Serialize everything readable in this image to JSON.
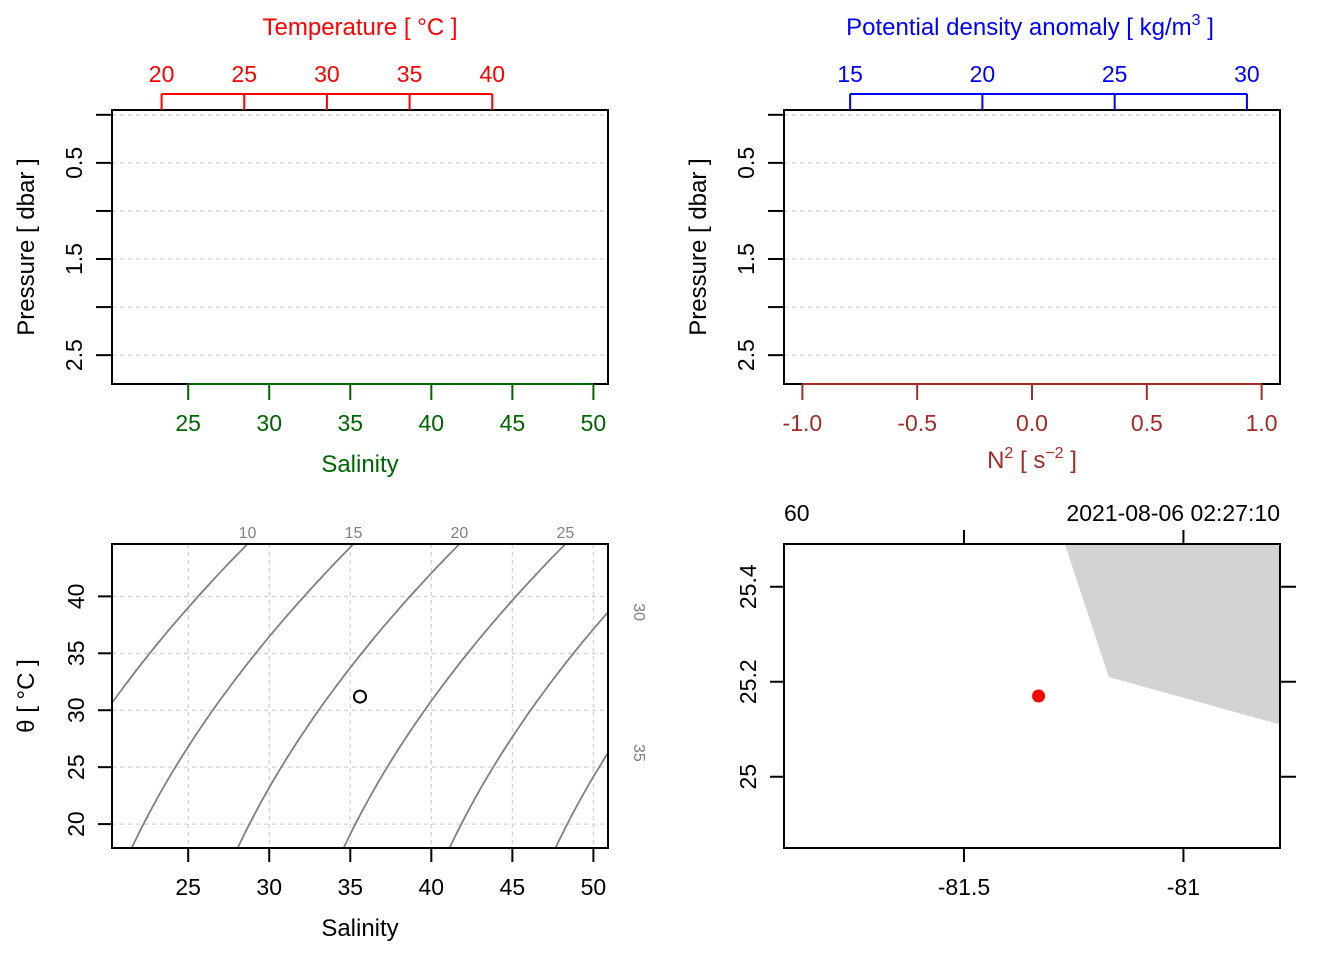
{
  "colors": {
    "temperature": "#ff0000",
    "salinity": "#006400",
    "density": "#0000ff",
    "n2": "#a52a2a",
    "isopycnal": "#808080",
    "grid": "#d3d3d3",
    "land": "#d3d3d3",
    "station": "#ff0000"
  },
  "chart_data": [
    {
      "id": "profile-ts",
      "type": "line",
      "top_axis": {
        "label_main": "Temperature [ °C ]",
        "ticks": [
          20,
          25,
          30,
          35,
          40
        ],
        "tick_labels": [
          "20",
          "25",
          "30",
          "35",
          "40"
        ],
        "range": [
          17.0,
          47.0
        ]
      },
      "bottom_axis": {
        "label": "Salinity",
        "ticks": [
          25,
          30,
          35,
          40,
          45,
          50
        ],
        "tick_labels": [
          "25",
          "30",
          "35",
          "40",
          "45",
          "50"
        ],
        "range": [
          20.3,
          50.9
        ]
      },
      "y_axis": {
        "label": "Pressure [ dbar ]",
        "ticks": [
          0.5,
          1.5,
          2.5
        ],
        "tick_labels": [
          "0.5",
          "1.5",
          "2.5"
        ],
        "grid_values": [
          0.0,
          0.5,
          1.0,
          1.5,
          2.0,
          2.5
        ],
        "range": [
          2.8,
          -0.05
        ],
        "inverted": true
      },
      "series": []
    },
    {
      "id": "profile-density-n2",
      "type": "line",
      "top_axis": {
        "label_main": "Potential density anomaly [ kg/m",
        "label_sup": "3",
        "label_end": " ]",
        "ticks": [
          15,
          20,
          25,
          30
        ],
        "tick_labels": [
          "15",
          "20",
          "25",
          "30"
        ],
        "range": [
          12.5,
          31.25
        ]
      },
      "bottom_axis": {
        "label_main": "N",
        "label_sup1": "2",
        "label_mid": " [ s",
        "label_sup2": "−2",
        "label_end": " ]",
        "ticks": [
          -1.0,
          -0.5,
          0.0,
          0.5,
          1.0
        ],
        "tick_labels": [
          "-1.0",
          "-0.5",
          "0.0",
          "0.5",
          "1.0"
        ],
        "range": [
          -1.08,
          1.08
        ]
      },
      "y_axis": {
        "label": "Pressure [ dbar ]",
        "ticks": [
          0.5,
          1.5,
          2.5
        ],
        "tick_labels": [
          "0.5",
          "1.5",
          "2.5"
        ],
        "grid_values": [
          0.0,
          0.5,
          1.0,
          1.5,
          2.0,
          2.5
        ],
        "range": [
          2.8,
          -0.05
        ],
        "inverted": true
      },
      "series": []
    },
    {
      "id": "ts-diagram",
      "type": "scatter",
      "xlabel": "Salinity",
      "ylabel": "θ [ °C ]",
      "xlim": [
        20.3,
        50.9
      ],
      "ylim": [
        17.9,
        44.6
      ],
      "x_ticks": [
        25,
        30,
        35,
        40,
        45,
        50
      ],
      "y_ticks": [
        20,
        25,
        30,
        35,
        40
      ],
      "x_tick_labels": [
        "25",
        "30",
        "35",
        "40",
        "45",
        "50"
      ],
      "y_tick_labels": [
        "20",
        "25",
        "30",
        "35",
        "40"
      ],
      "points": [
        {
          "x": 35.6,
          "y": 31.2
        }
      ],
      "isopycnals": [
        {
          "label": "10",
          "sigma": 10
        },
        {
          "label": "15",
          "sigma": 15
        },
        {
          "label": "20",
          "sigma": 20
        },
        {
          "label": "25",
          "sigma": 25
        },
        {
          "label": "30",
          "sigma": 30
        },
        {
          "label": "35",
          "sigma": 35
        }
      ]
    },
    {
      "id": "station-map",
      "type": "scatter",
      "top_left_label": "60",
      "top_right_label": "2021-08-06 02:27:10",
      "xlim": [
        -81.91,
        -80.78
      ],
      "ylim": [
        24.85,
        25.49
      ],
      "x_ticks": [
        -81.5,
        -81
      ],
      "x_tick_labels": [
        "-81.5",
        "-81"
      ],
      "y_ticks": [
        25,
        25.2,
        25.4
      ],
      "y_tick_labels": [
        "25",
        "25.2",
        "25.4"
      ],
      "station": {
        "lon": -81.33,
        "lat": 25.17
      },
      "land": [
        {
          "lon": -81.27,
          "lat": 25.49
        },
        {
          "lon": -81.17,
          "lat": 25.21
        },
        {
          "lon": -80.78,
          "lat": 25.11
        },
        {
          "lon": -80.78,
          "lat": 25.49
        }
      ]
    }
  ]
}
